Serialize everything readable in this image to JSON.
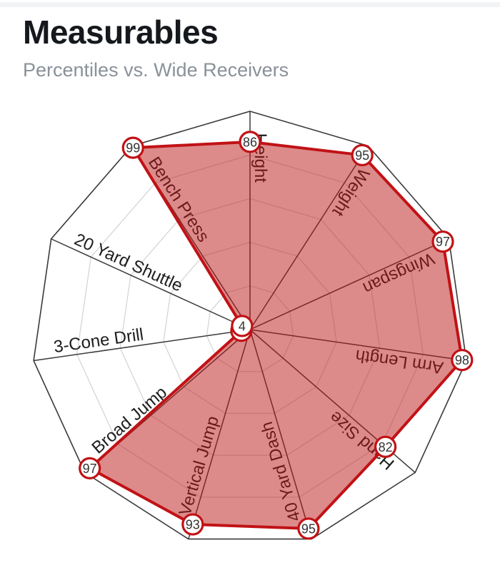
{
  "header": {
    "title": "Measurables",
    "subtitle": "Percentiles vs. Wide Receivers"
  },
  "chart_data": {
    "type": "radar",
    "title": "Measurables",
    "subtitle": "Percentiles vs. Wide Receivers",
    "categories": [
      "Height",
      "Weight",
      "Wingspan",
      "Arm Length",
      "Hand Size",
      "40 Yard Dash",
      "Vertical Jump",
      "Broad Jump",
      "3-Cone Drill",
      "20 Yard Shuttle",
      "Bench Press"
    ],
    "values": [
      86,
      95,
      97,
      98,
      82,
      95,
      93,
      97,
      4,
      4,
      99
    ],
    "scale": {
      "min": 0,
      "max": 100,
      "ring_step": 20
    },
    "start_axis": "top",
    "direction": "clockwise",
    "grid": "polygon-rings",
    "legend": "none",
    "colors": {
      "series_stroke": "#c11216",
      "series_fill": "rgba(187,21,21,0.5)",
      "grid_ring": "#d6d6d6",
      "outer_ring": "#3a3a3a",
      "spoke": "#3a3a3a",
      "axis_label": "#1d1d1d",
      "marker_fill": "#ffffff",
      "marker_text": "#333333",
      "title": "#15181c",
      "subtitle": "#8a9199"
    }
  }
}
